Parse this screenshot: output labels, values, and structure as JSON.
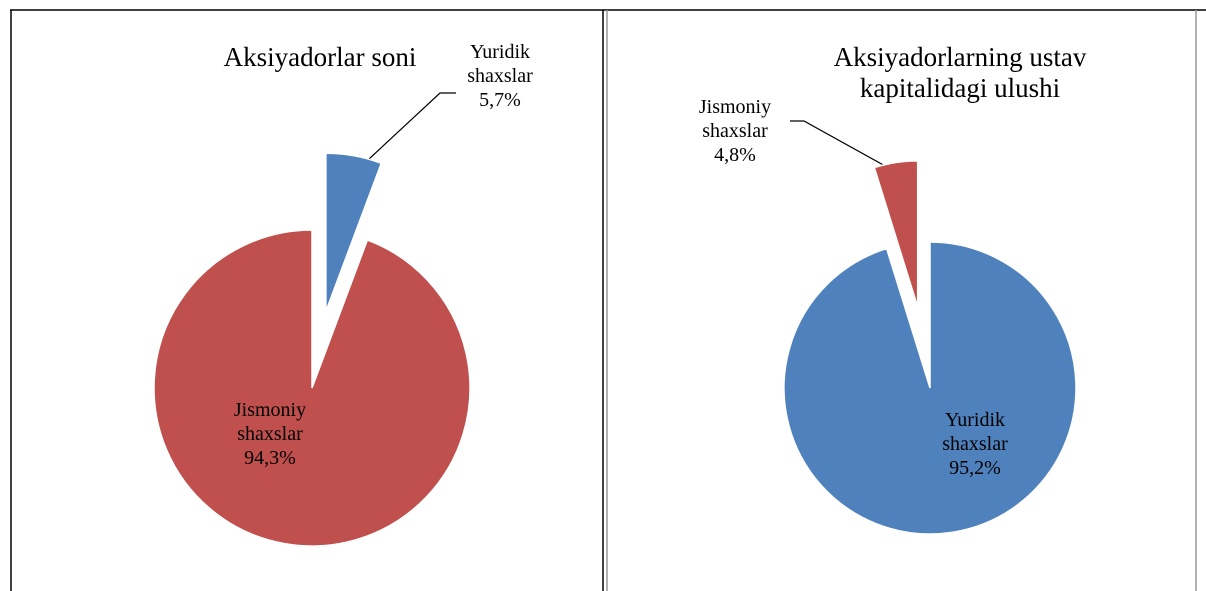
{
  "chart_data": [
    {
      "type": "pie",
      "title": "Aksiyadorlar soni",
      "categories": [
        "Yuridik shaxslar",
        "Jismoniy shaxslar"
      ],
      "values": [
        5.7,
        94.3
      ],
      "value_labels": [
        "5,7%",
        "94,3%"
      ],
      "colors": [
        "#4f81bd",
        "#c0504d"
      ]
    },
    {
      "type": "pie",
      "title": "Aksiyadorlarning ustav kapitalidagi ulushi",
      "categories": [
        "Yuridik shaxslar",
        "Jismoniy shaxslar"
      ],
      "values": [
        95.2,
        4.8
      ],
      "value_labels": [
        "95,2%",
        "4,8%"
      ],
      "colors": [
        "#4f81bd",
        "#c0504d"
      ]
    }
  ]
}
